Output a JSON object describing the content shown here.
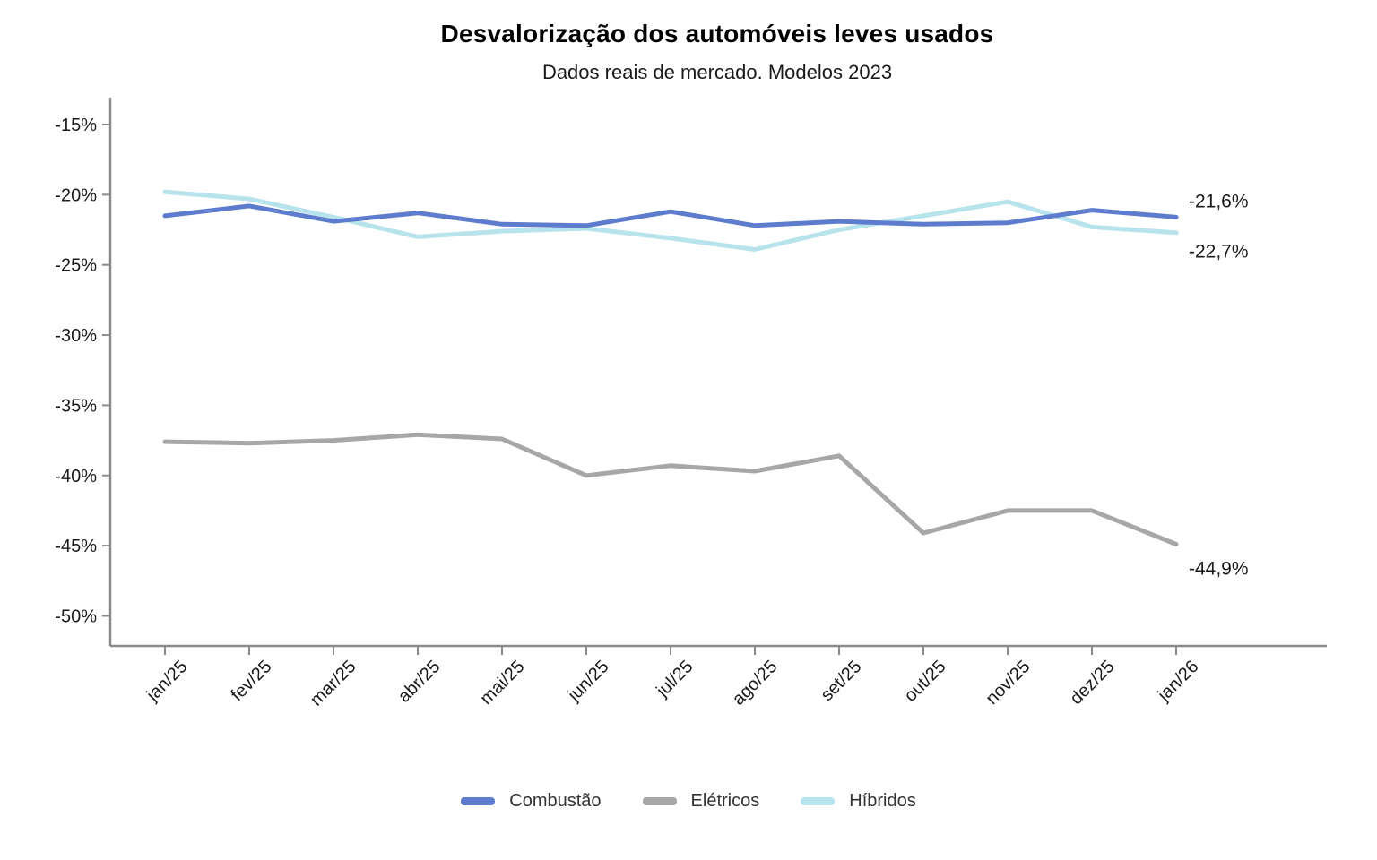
{
  "chart": {
    "title": "Desvalorização dos automóveis leves usados",
    "subtitle": "Dados reais de mercado. Modelos 2023"
  },
  "chart_data": {
    "type": "line",
    "title": "Desvalorização dos automóveis leves usados",
    "subtitle": "Dados reais de mercado. Modelos 2023",
    "xlabel": "",
    "ylabel": "",
    "grid": false,
    "legend_position": "bottom",
    "ylim": [
      -52,
      -13
    ],
    "yticks": [
      -15,
      -20,
      -25,
      -30,
      -35,
      -40,
      -45,
      -50
    ],
    "ytick_labels": [
      "-15%",
      "-20%",
      "-25%",
      "-30%",
      "-35%",
      "-40%",
      "-45%",
      "-50%"
    ],
    "categories": [
      "jan/25",
      "fev/25",
      "mar/25",
      "abr/25",
      "mai/25",
      "jun/25",
      "jul/25",
      "ago/25",
      "set/25",
      "out/25",
      "nov/25",
      "dez/25",
      "jan/26"
    ],
    "series": [
      {
        "name": "Combustão",
        "color": "#5d7cce",
        "end_label": "-21,6%",
        "values": [
          -21.5,
          -20.8,
          -21.9,
          -21.3,
          -22.1,
          -22.2,
          -21.2,
          -22.2,
          -21.9,
          -22.1,
          -22.0,
          -21.1,
          -21.6
        ]
      },
      {
        "name": "Elétricos",
        "color": "#a7a7a7",
        "end_label": "-44,9%",
        "values": [
          -37.6,
          -37.7,
          -37.5,
          -37.1,
          -37.4,
          -40.0,
          -39.3,
          -39.7,
          -38.6,
          -44.1,
          -42.5,
          -42.5,
          -44.9
        ]
      },
      {
        "name": "Híbridos",
        "color": "#b7e3ed",
        "end_label": "-22,7%",
        "values": [
          -19.8,
          -20.3,
          -21.6,
          -23.0,
          -22.6,
          -22.4,
          -23.1,
          -23.9,
          -22.5,
          -21.5,
          -20.5,
          -22.3,
          -22.7
        ]
      }
    ],
    "annotation_color": "#1a1a1a",
    "axis_color": "#8a8a8a",
    "tick_label_color": "#1a1a1a"
  }
}
